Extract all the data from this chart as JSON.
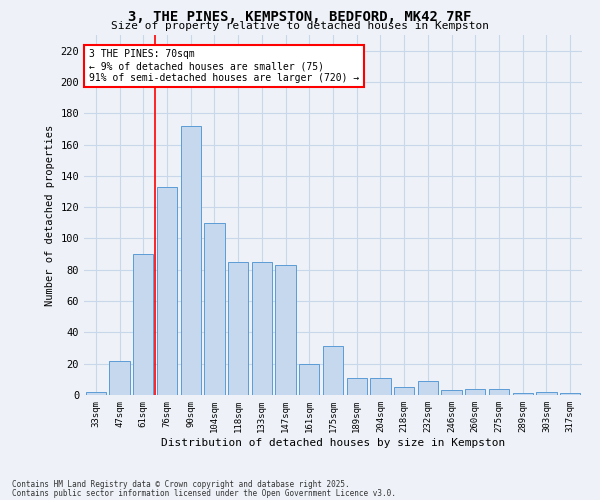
{
  "title_line1": "3, THE PINES, KEMPSTON, BEDFORD, MK42 7RF",
  "title_line2": "Size of property relative to detached houses in Kempston",
  "xlabel": "Distribution of detached houses by size in Kempston",
  "ylabel": "Number of detached properties",
  "categories": [
    "33sqm",
    "47sqm",
    "61sqm",
    "76sqm",
    "90sqm",
    "104sqm",
    "118sqm",
    "133sqm",
    "147sqm",
    "161sqm",
    "175sqm",
    "189sqm",
    "204sqm",
    "218sqm",
    "232sqm",
    "246sqm",
    "260sqm",
    "275sqm",
    "289sqm",
    "303sqm",
    "317sqm"
  ],
  "values": [
    2,
    22,
    90,
    133,
    172,
    110,
    85,
    85,
    83,
    20,
    31,
    11,
    11,
    5,
    9,
    3,
    4,
    4,
    1,
    2,
    1
  ],
  "bar_color": "#c5d8ed",
  "bar_edge_color": "#5b9bd5",
  "grid_color": "#c8d8ea",
  "vline_color": "red",
  "vline_pos": 2.5,
  "annotation_text": "3 THE PINES: 70sqm\n← 9% of detached houses are smaller (75)\n91% of semi-detached houses are larger (720) →",
  "annotation_box_color": "white",
  "annotation_box_edge": "red",
  "ylim": [
    0,
    230
  ],
  "yticks": [
    0,
    20,
    40,
    60,
    80,
    100,
    120,
    140,
    160,
    180,
    200,
    220
  ],
  "footer_line1": "Contains HM Land Registry data © Crown copyright and database right 2025.",
  "footer_line2": "Contains public sector information licensed under the Open Government Licence v3.0.",
  "bg_color": "#eef2f8"
}
